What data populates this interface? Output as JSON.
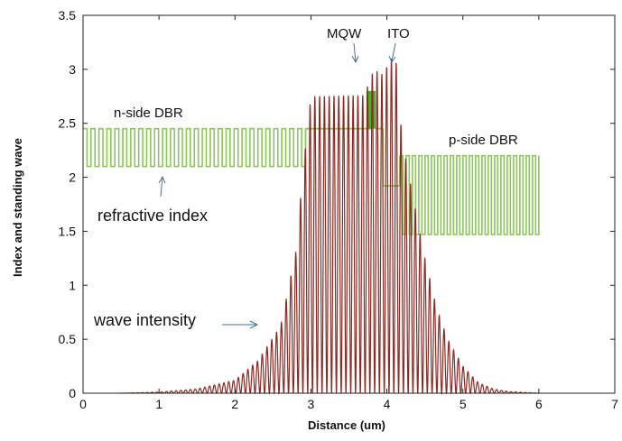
{
  "chart_data": {
    "type": "line",
    "title": "",
    "xlabel": "Distance (um)",
    "ylabel": "Index and standing wave",
    "xlim": [
      0,
      7
    ],
    "ylim": [
      0,
      3.5
    ],
    "x_ticks": [
      "0",
      "1",
      "2",
      "3",
      "4",
      "5",
      "6",
      "7"
    ],
    "y_ticks": [
      "0",
      "0.5",
      "1",
      "1.5",
      "2",
      "2.5",
      "3",
      "3.5"
    ],
    "grid": false,
    "legend": "none",
    "colors": {
      "index": "#8cc65a",
      "wave": "#8b2a22",
      "mqw": "#4eae2e"
    },
    "annotations": [
      {
        "id": "n-side-dbr",
        "text": "n-side DBR"
      },
      {
        "id": "p-side-dbr",
        "text": "p-side DBR"
      },
      {
        "id": "mqw",
        "text": "MQW"
      },
      {
        "id": "ito",
        "text": "ITO"
      },
      {
        "id": "refractive-index",
        "text": "refractive index"
      },
      {
        "id": "wave-intensity",
        "text": "wave intensity"
      }
    ],
    "series": [
      {
        "id": "index",
        "segments": [
          {
            "region": "n-side DBR",
            "x": [
              0,
              2.93
            ],
            "low": 2.1,
            "high": 2.45,
            "periods": 28
          },
          {
            "region": "cavity",
            "x": [
              2.93,
              3.8
            ],
            "value": 2.45
          },
          {
            "region": "MQW",
            "x": [
              3.73,
              3.85
            ],
            "value": 2.8
          },
          {
            "region": "cavity",
            "x": [
              3.85,
              3.95
            ],
            "value": 2.45
          },
          {
            "region": "ITO",
            "x": [
              3.95,
              4.17
            ],
            "value": 1.92
          },
          {
            "region": "p-side DBR",
            "x": [
              4.17,
              6.0
            ],
            "low": 1.47,
            "high": 2.2,
            "periods": 22
          }
        ]
      },
      {
        "id": "wave",
        "envelope": [
          [
            0.5,
            0.0
          ],
          [
            1.0,
            0.01
          ],
          [
            1.5,
            0.04
          ],
          [
            2.0,
            0.12
          ],
          [
            2.3,
            0.3
          ],
          [
            2.6,
            0.62
          ],
          [
            2.8,
            1.3
          ],
          [
            2.9,
            2.1
          ],
          [
            3.0,
            2.75
          ],
          [
            3.7,
            2.76
          ],
          [
            3.83,
            3.0
          ],
          [
            3.95,
            2.95
          ],
          [
            4.05,
            3.1
          ],
          [
            4.12,
            3.08
          ],
          [
            4.2,
            2.35
          ],
          [
            4.35,
            1.8
          ],
          [
            4.5,
            1.25
          ],
          [
            4.65,
            0.8
          ],
          [
            4.8,
            0.5
          ],
          [
            5.0,
            0.25
          ],
          [
            5.2,
            0.1
          ],
          [
            5.4,
            0.04
          ],
          [
            5.6,
            0.015
          ],
          [
            6.0,
            0.0
          ]
        ],
        "fringe_period_um": 0.063
      }
    ]
  }
}
